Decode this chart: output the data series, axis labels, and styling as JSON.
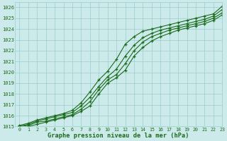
{
  "x": [
    0,
    1,
    2,
    3,
    4,
    5,
    6,
    7,
    8,
    9,
    10,
    11,
    12,
    13,
    14,
    15,
    16,
    17,
    18,
    19,
    20,
    21,
    22,
    23
  ],
  "line1": [
    1015.1,
    1015.3,
    1015.6,
    1015.8,
    1016.0,
    1016.2,
    1016.5,
    1017.2,
    1018.2,
    1019.3,
    1020.1,
    1021.2,
    1022.6,
    1023.3,
    1023.8,
    1024.0,
    1024.2,
    1024.4,
    1024.6,
    1024.8,
    1025.0,
    1025.2,
    1025.4,
    1026.1
  ],
  "line2": [
    1015.0,
    1015.2,
    1015.5,
    1015.7,
    1015.9,
    1016.1,
    1016.3,
    1016.9,
    1017.7,
    1018.7,
    1019.6,
    1020.3,
    1021.5,
    1022.5,
    1023.2,
    1023.6,
    1023.9,
    1024.1,
    1024.3,
    1024.5,
    1024.7,
    1024.9,
    1025.2,
    1025.8
  ],
  "line3": [
    1015.0,
    1015.1,
    1015.4,
    1015.5,
    1015.7,
    1015.9,
    1016.1,
    1016.6,
    1017.3,
    1018.4,
    1019.3,
    1019.8,
    1020.8,
    1022.0,
    1022.8,
    1023.3,
    1023.6,
    1023.9,
    1024.1,
    1024.3,
    1024.5,
    1024.7,
    1025.0,
    1025.5
  ],
  "line4": [
    1015.0,
    1015.0,
    1015.2,
    1015.4,
    1015.6,
    1015.8,
    1016.0,
    1016.4,
    1016.9,
    1018.0,
    1019.0,
    1019.5,
    1020.2,
    1021.5,
    1022.3,
    1022.9,
    1023.3,
    1023.6,
    1023.9,
    1024.1,
    1024.3,
    1024.5,
    1024.8,
    1025.3
  ],
  "line_color": "#1a6b1a",
  "bg_color": "#cceaea",
  "grid_color": "#99cccc",
  "xlabel": "Graphe pression niveau de la mer (hPa)",
  "ylim": [
    1015,
    1026.5
  ],
  "xlim": [
    -0.5,
    23
  ],
  "yticks": [
    1015,
    1016,
    1017,
    1018,
    1019,
    1020,
    1021,
    1022,
    1023,
    1024,
    1025,
    1026
  ],
  "xticks": [
    0,
    1,
    2,
    3,
    4,
    5,
    6,
    7,
    8,
    9,
    10,
    11,
    12,
    13,
    14,
    15,
    16,
    17,
    18,
    19,
    20,
    21,
    22,
    23
  ]
}
